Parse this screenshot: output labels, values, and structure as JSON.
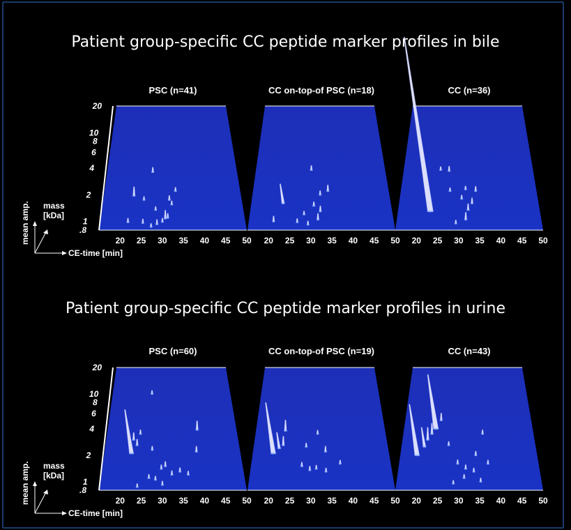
{
  "sections": [
    {
      "title": "Patient group-specific CC peptide marker profiles in bile"
    },
    {
      "title": "Patient group-specific CC peptide marker profiles in urine"
    }
  ],
  "axes": {
    "mass_label": "mass",
    "mass_unit": "[kDa]",
    "amp_label": "mean amp.",
    "ce_label": "CE-time [min]"
  },
  "colors": {
    "background": "#000000",
    "plane": "#1a2db0",
    "plane_edge": "#ffffff",
    "peak": "#e6e9ff"
  },
  "chart_data": [
    {
      "type": "scatter",
      "title": "PSC (n=41)",
      "x": {
        "label": "CE-time [min]",
        "ticks": [
          20,
          25,
          30,
          35,
          40,
          45,
          50
        ],
        "lim": [
          15,
          50
        ]
      },
      "y": {
        "label": "mass [kDa]",
        "scale": "log",
        "ticks": [
          "20",
          "10",
          "8",
          "6",
          "4",
          "2",
          "1",
          ".8"
        ],
        "lim": [
          0.8,
          20
        ]
      },
      "z": {
        "label": "mean amp."
      },
      "peaks": [
        {
          "ce": 22.7,
          "mass": 1.95,
          "amp": 2.0
        },
        {
          "ce": 27.3,
          "mass": 3.6,
          "amp": 0.8
        },
        {
          "ce": 21.7,
          "mass": 0.98,
          "amp": 0.6
        },
        {
          "ce": 25.3,
          "mass": 0.96,
          "amp": 0.6
        },
        {
          "ce": 28.7,
          "mass": 0.93,
          "amp": 0.8
        },
        {
          "ce": 30.7,
          "mass": 1.08,
          "amp": 1.8
        },
        {
          "ce": 31.7,
          "mass": 1.75,
          "amp": 0.7
        },
        {
          "ce": 31.3,
          "mass": 1.1,
          "amp": 0.7
        },
        {
          "ce": 30.0,
          "mass": 0.99,
          "amp": 0.5
        },
        {
          "ce": 32.3,
          "mass": 1.55,
          "amp": 0.5
        },
        {
          "ce": 27.3,
          "mass": 0.87,
          "amp": 0.4
        },
        {
          "ce": 28.3,
          "mass": 1.35,
          "amp": 0.4
        },
        {
          "ce": 33.3,
          "mass": 2.2,
          "amp": 0.5
        },
        {
          "ce": 25.3,
          "mass": 1.75,
          "amp": 0.4
        }
      ]
    },
    {
      "type": "scatter",
      "title": "CC on-top-of PSC (n=18)",
      "x": {
        "label": "CE-time [min]",
        "ticks": [
          20,
          25,
          30,
          35,
          40,
          45,
          50
        ],
        "lim": [
          15,
          50
        ]
      },
      "y": {
        "label": "mass [kDa]",
        "scale": "log",
        "ticks": [
          "20",
          "10",
          "8",
          "6",
          "4",
          "2",
          "1",
          ".8"
        ],
        "lim": [
          0.8,
          20
        ]
      },
      "z": {
        "label": "mean amp."
      },
      "peaks": [
        {
          "ce": 21.0,
          "mass": 1.0,
          "amp": 1.0
        },
        {
          "ce": 23.0,
          "mass": 1.6,
          "amp": 5.0
        },
        {
          "ce": 30.0,
          "mass": 3.8,
          "amp": 0.7
        },
        {
          "ce": 31.7,
          "mass": 1.05,
          "amp": 1.2
        },
        {
          "ce": 32.3,
          "mass": 1.3,
          "amp": 1.0
        },
        {
          "ce": 30.7,
          "mass": 1.5,
          "amp": 0.6
        },
        {
          "ce": 32.3,
          "mass": 2.0,
          "amp": 0.6
        },
        {
          "ce": 34.3,
          "mass": 2.2,
          "amp": 1.2
        },
        {
          "ce": 29.3,
          "mass": 0.92,
          "amp": 0.5
        },
        {
          "ce": 28.3,
          "mass": 1.2,
          "amp": 0.4
        },
        {
          "ce": 26.7,
          "mass": 0.98,
          "amp": 0.5
        }
      ]
    },
    {
      "type": "scatter",
      "title": "CC (n=36)",
      "x": {
        "label": "CE-time [min]",
        "ticks": [
          20,
          25,
          30,
          35,
          40,
          45,
          50
        ],
        "lim": [
          15,
          50
        ]
      },
      "y": {
        "label": "mass [kDa]",
        "scale": "log",
        "ticks": [
          "20",
          "10",
          "8",
          "6",
          "4",
          "2",
          "1",
          ".8"
        ],
        "lim": [
          0.8,
          20
        ]
      },
      "z": {
        "label": "mean amp."
      },
      "peaks": [
        {
          "ce": 23.0,
          "mass": 1.3,
          "amp": 50.0
        },
        {
          "ce": 27.3,
          "mass": 3.7,
          "amp": 0.8
        },
        {
          "ce": 25.0,
          "mass": 3.8,
          "amp": 0.4
        },
        {
          "ce": 31.7,
          "mass": 1.05,
          "amp": 1.5
        },
        {
          "ce": 32.3,
          "mass": 1.35,
          "amp": 1.2
        },
        {
          "ce": 33.3,
          "mass": 1.6,
          "amp": 1.0
        },
        {
          "ce": 34.3,
          "mass": 2.2,
          "amp": 0.8
        },
        {
          "ce": 30.7,
          "mass": 1.8,
          "amp": 0.5
        },
        {
          "ce": 31.7,
          "mass": 2.3,
          "amp": 0.4
        },
        {
          "ce": 29.3,
          "mass": 0.95,
          "amp": 0.4
        },
        {
          "ce": 27.7,
          "mass": 2.2,
          "amp": 0.4
        }
      ]
    },
    {
      "type": "scatter",
      "title": "PSC (n=60)",
      "x": {
        "label": "CE-time [min]",
        "ticks": [
          20,
          25,
          30,
          35,
          40,
          45,
          50
        ],
        "lim": [
          15,
          50
        ]
      },
      "y": {
        "label": "mass [kDa]",
        "scale": "log",
        "ticks": [
          "20",
          "10",
          "8",
          "6",
          "4",
          "2",
          "1",
          ".8"
        ],
        "lim": [
          0.8,
          20
        ]
      },
      "z": {
        "label": "mean amp."
      },
      "peaks": [
        {
          "ce": 22.0,
          "mass": 2.1,
          "amp": 12.0
        },
        {
          "ce": 22.3,
          "mass": 3.0,
          "amp": 1.5
        },
        {
          "ce": 23.3,
          "mass": 2.6,
          "amp": 1.2
        },
        {
          "ce": 39.3,
          "mass": 3.9,
          "amp": 2.0
        },
        {
          "ce": 38.7,
          "mass": 2.2,
          "amp": 1.0
        },
        {
          "ce": 26.7,
          "mass": 10.0,
          "amp": 0.4
        },
        {
          "ce": 24.0,
          "mass": 3.5,
          "amp": 0.6
        },
        {
          "ce": 27.3,
          "mass": 2.3,
          "amp": 0.5
        },
        {
          "ce": 30.7,
          "mass": 1.5,
          "amp": 0.8
        },
        {
          "ce": 29.7,
          "mass": 1.4,
          "amp": 0.6
        },
        {
          "ce": 32.3,
          "mass": 1.2,
          "amp": 0.6
        },
        {
          "ce": 34.3,
          "mass": 1.3,
          "amp": 0.6
        },
        {
          "ce": 36.3,
          "mass": 1.2,
          "amp": 0.5
        },
        {
          "ce": 26.7,
          "mass": 1.1,
          "amp": 0.5
        },
        {
          "ce": 28.3,
          "mass": 1.05,
          "amp": 0.5
        },
        {
          "ce": 30.0,
          "mass": 0.92,
          "amp": 0.5
        },
        {
          "ce": 24.0,
          "mass": 0.87,
          "amp": 0.4
        }
      ]
    },
    {
      "type": "scatter",
      "title": "CC on-top-of PSC (n=19)",
      "x": {
        "label": "CE-time [min]",
        "ticks": [
          20,
          25,
          30,
          35,
          40,
          45,
          50
        ],
        "lim": [
          15,
          50
        ]
      },
      "y": {
        "label": "mass [kDa]",
        "scale": "log",
        "ticks": [
          "20",
          "10",
          "8",
          "6",
          "4",
          "2",
          "1",
          ".8"
        ],
        "lim": [
          0.8,
          20
        ]
      },
      "z": {
        "label": "mean amp."
      },
      "peaks": [
        {
          "ce": 20.3,
          "mass": 2.1,
          "amp": 14.0
        },
        {
          "ce": 21.7,
          "mass": 2.4,
          "amp": 4.0
        },
        {
          "ce": 22.7,
          "mass": 2.6,
          "amp": 2.0
        },
        {
          "ce": 23.0,
          "mass": 3.8,
          "amp": 2.5
        },
        {
          "ce": 33.7,
          "mass": 2.2,
          "amp": 1.0
        },
        {
          "ce": 31.7,
          "mass": 3.5,
          "amp": 0.5
        },
        {
          "ce": 28.7,
          "mass": 2.5,
          "amp": 0.5
        },
        {
          "ce": 27.7,
          "mass": 1.5,
          "amp": 0.6
        },
        {
          "ce": 29.7,
          "mass": 1.35,
          "amp": 0.6
        },
        {
          "ce": 31.3,
          "mass": 1.4,
          "amp": 0.5
        },
        {
          "ce": 33.7,
          "mass": 1.3,
          "amp": 0.5
        },
        {
          "ce": 37.3,
          "mass": 1.6,
          "amp": 0.5
        }
      ]
    },
    {
      "type": "scatter",
      "title": "CC (n=43)",
      "x": {
        "label": "CE-time [min]",
        "ticks": [
          20,
          25,
          30,
          35,
          40,
          45,
          50
        ],
        "lim": [
          15,
          50
        ]
      },
      "y": {
        "label": "mass [kDa]",
        "scale": "log",
        "ticks": [
          "20",
          "10",
          "8",
          "6",
          "4",
          "2",
          "1",
          ".8"
        ],
        "lim": [
          0.8,
          20
        ]
      },
      "z": {
        "label": "mean amp."
      },
      "peaks": [
        {
          "ce": 19.3,
          "mass": 2.0,
          "amp": 14.0
        },
        {
          "ce": 21.0,
          "mass": 2.5,
          "amp": 5.0
        },
        {
          "ce": 21.7,
          "mass": 3.0,
          "amp": 3.0
        },
        {
          "ce": 22.7,
          "mass": 3.5,
          "amp": 2.5
        },
        {
          "ce": 23.7,
          "mass": 4.0,
          "amp": 15.0
        },
        {
          "ce": 25.0,
          "mass": 5.0,
          "amp": 1.5
        },
        {
          "ce": 27.3,
          "mass": 2.6,
          "amp": 0.5
        },
        {
          "ce": 29.7,
          "mass": 1.6,
          "amp": 0.6
        },
        {
          "ce": 31.7,
          "mass": 1.4,
          "amp": 0.6
        },
        {
          "ce": 33.7,
          "mass": 1.3,
          "amp": 0.5
        },
        {
          "ce": 34.3,
          "mass": 2.0,
          "amp": 0.6
        },
        {
          "ce": 36.3,
          "mass": 3.5,
          "amp": 0.6
        },
        {
          "ce": 37.3,
          "mass": 1.6,
          "amp": 0.5
        },
        {
          "ce": 31.3,
          "mass": 1.1,
          "amp": 0.5
        },
        {
          "ce": 35.3,
          "mass": 1.0,
          "amp": 0.5
        },
        {
          "ce": 28.7,
          "mass": 0.95,
          "amp": 0.4
        }
      ]
    }
  ]
}
